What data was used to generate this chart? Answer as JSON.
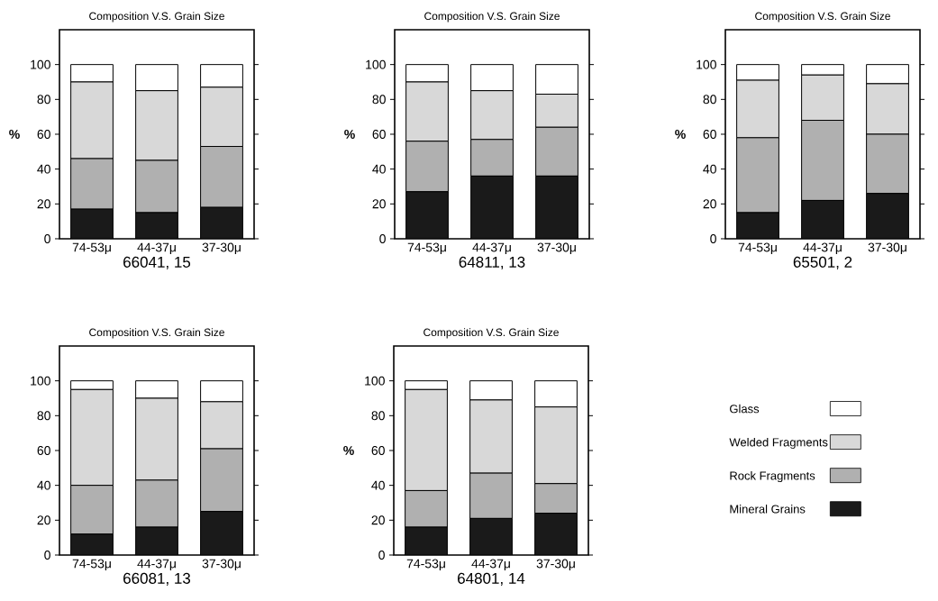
{
  "chart_data": [
    {
      "type": "bar",
      "stacked": true,
      "title": "Composition V.S. Grain Size",
      "xlabel": "66041, 15",
      "ylabel": "%",
      "categories": [
        "74-53μ",
        "44-37μ",
        "37-30μ"
      ],
      "ylim": [
        0,
        120
      ],
      "yticks": [
        0,
        20,
        40,
        60,
        80,
        100
      ],
      "legend": false,
      "series": [
        {
          "color": "#1a1a1a",
          "values": [
            17,
            15,
            18
          ]
        },
        {
          "color": "#b0b0b0",
          "values": [
            29,
            30,
            35
          ]
        },
        {
          "color": "#d8d8d8",
          "values": [
            44,
            40,
            34
          ]
        },
        {
          "color": "#ffffff",
          "values": [
            10,
            15,
            13
          ]
        }
      ]
    },
    {
      "type": "bar",
      "stacked": true,
      "title": "Composition V.S. Grain Size",
      "xlabel": "64811, 13",
      "ylabel": "%",
      "categories": [
        "74-53μ",
        "44-37μ",
        "37-30μ"
      ],
      "ylim": [
        0,
        120
      ],
      "yticks": [
        0,
        20,
        40,
        60,
        80,
        100
      ],
      "legend": false,
      "series": [
        {
          "color": "#1a1a1a",
          "values": [
            27,
            36,
            36
          ]
        },
        {
          "color": "#b0b0b0",
          "values": [
            29,
            21,
            28
          ]
        },
        {
          "color": "#d8d8d8",
          "values": [
            34,
            28,
            19
          ]
        },
        {
          "color": "#ffffff",
          "values": [
            10,
            15,
            17
          ]
        }
      ]
    },
    {
      "type": "bar",
      "stacked": true,
      "title": "Composition V.S. Grain Size",
      "xlabel": "65501, 2",
      "ylabel": "%",
      "categories": [
        "74-53μ",
        "44-37μ",
        "37-30μ"
      ],
      "ylim": [
        0,
        120
      ],
      "yticks": [
        0,
        20,
        40,
        60,
        80,
        100
      ],
      "legend": false,
      "series": [
        {
          "color": "#1a1a1a",
          "values": [
            15,
            22,
            26
          ]
        },
        {
          "color": "#b0b0b0",
          "values": [
            43,
            46,
            34
          ]
        },
        {
          "color": "#d8d8d8",
          "values": [
            33,
            26,
            29
          ]
        },
        {
          "color": "#ffffff",
          "values": [
            9,
            6,
            11
          ]
        }
      ]
    },
    {
      "type": "bar",
      "stacked": true,
      "title": "Composition V.S. Grain Size",
      "xlabel": "66081, 13",
      "categories": [
        "74-53μ",
        "44-37μ",
        "37-30μ"
      ],
      "ylim": [
        0,
        120
      ],
      "yticks": [
        0,
        20,
        40,
        60,
        80,
        100
      ],
      "legend": false,
      "series": [
        {
          "color": "#1a1a1a",
          "values": [
            12,
            16,
            25
          ]
        },
        {
          "color": "#b0b0b0",
          "values": [
            28,
            27,
            36
          ]
        },
        {
          "color": "#d8d8d8",
          "values": [
            55,
            47,
            27
          ]
        },
        {
          "color": "#ffffff",
          "values": [
            5,
            10,
            12
          ]
        }
      ]
    },
    {
      "type": "bar",
      "stacked": true,
      "title": "Composition V.S. Grain Size",
      "xlabel": "64801, 14",
      "ylabel": "%",
      "categories": [
        "74-53μ",
        "44-37μ",
        "37-30μ"
      ],
      "ylim": [
        0,
        120
      ],
      "yticks": [
        0,
        20,
        40,
        60,
        80,
        100
      ],
      "legend": "right",
      "series": [
        {
          "name": "Mineral Grains",
          "color": "#1a1a1a",
          "values": [
            16,
            21,
            24
          ]
        },
        {
          "name": "Rock Fragments",
          "color": "#b0b0b0",
          "values": [
            21,
            26,
            17
          ]
        },
        {
          "name": "Welded Fragments",
          "color": "#d8d8d8",
          "values": [
            58,
            42,
            44
          ]
        },
        {
          "name": "Glass",
          "color": "#ffffff",
          "values": [
            5,
            11,
            15
          ]
        }
      ]
    }
  ]
}
